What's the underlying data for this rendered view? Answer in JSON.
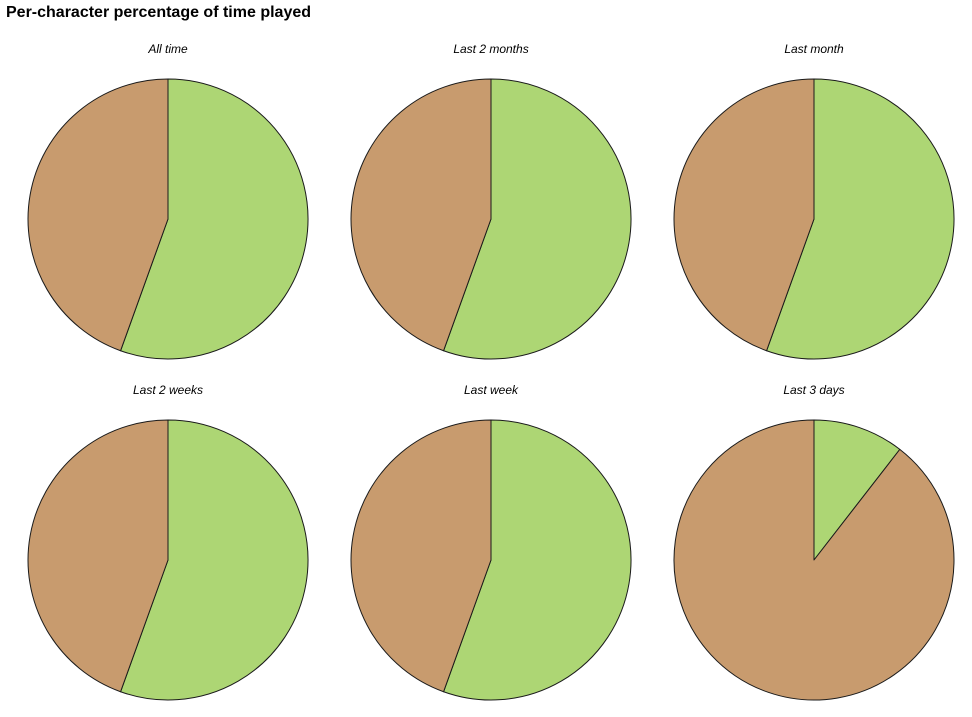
{
  "title": "Per-character percentage of time played",
  "colors": {
    "series_a": "#add674",
    "series_b": "#c89b6e",
    "stroke": "#1a1a1a"
  },
  "chart_data": [
    {
      "type": "pie",
      "title": "All time",
      "slices": [
        {
          "value": 55.5,
          "color": "#add674"
        },
        {
          "value": 44.5,
          "color": "#c89b6e"
        }
      ]
    },
    {
      "type": "pie",
      "title": "Last 2 months",
      "slices": [
        {
          "value": 55.5,
          "color": "#add674"
        },
        {
          "value": 44.5,
          "color": "#c89b6e"
        }
      ]
    },
    {
      "type": "pie",
      "title": "Last month",
      "slices": [
        {
          "value": 55.5,
          "color": "#add674"
        },
        {
          "value": 44.5,
          "color": "#c89b6e"
        }
      ]
    },
    {
      "type": "pie",
      "title": "Last 2 weeks",
      "slices": [
        {
          "value": 55.5,
          "color": "#add674"
        },
        {
          "value": 44.5,
          "color": "#c89b6e"
        }
      ]
    },
    {
      "type": "pie",
      "title": "Last week",
      "slices": [
        {
          "value": 55.5,
          "color": "#add674"
        },
        {
          "value": 44.5,
          "color": "#c89b6e"
        }
      ]
    },
    {
      "type": "pie",
      "title": "Last 3 days",
      "slices": [
        {
          "value": 10.5,
          "color": "#add674"
        },
        {
          "value": 89.5,
          "color": "#c89b6e"
        }
      ]
    }
  ]
}
